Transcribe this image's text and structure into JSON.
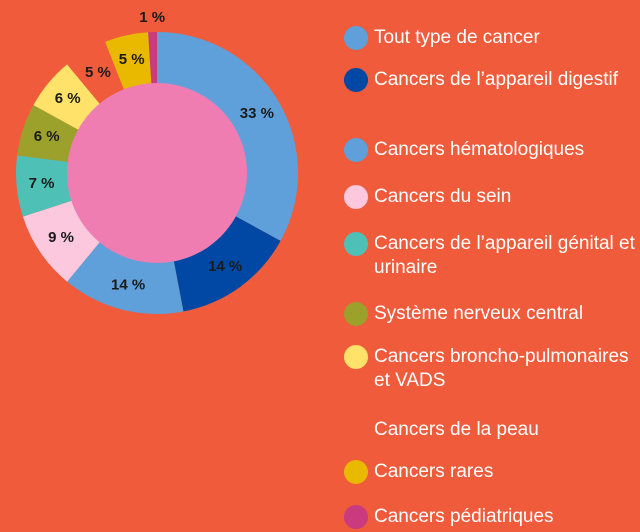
{
  "chart_data": {
    "type": "pie",
    "donut": true,
    "categories": [
      "Tout type de cancer",
      "Cancers de l’appareil digestif",
      "Cancers hématologiques",
      "Cancers du sein",
      "Cancers de l’appareil génital et urinaire",
      "Système nerveux central",
      "Cancers broncho-pulmonaires et VADS",
      "Cancers de la peau",
      "Cancers rares",
      "Cancers pédiatriques"
    ],
    "values": [
      33,
      14,
      14,
      9,
      7,
      6,
      6,
      5,
      5,
      1
    ],
    "value_labels": [
      "33 %",
      "14 %",
      "14 %",
      "9 %",
      "7 %",
      "6 %",
      "6 %",
      "5 %",
      "5 %",
      "1 %"
    ],
    "colors": [
      "#5fa0da",
      "#0048a3",
      "#5fa0da",
      "#fcc8dd",
      "#4ec0b6",
      "#9ba12b",
      "#ffe26a",
      "#ef5b3b",
      "#e9b900",
      "#c93a7f"
    ]
  }
}
